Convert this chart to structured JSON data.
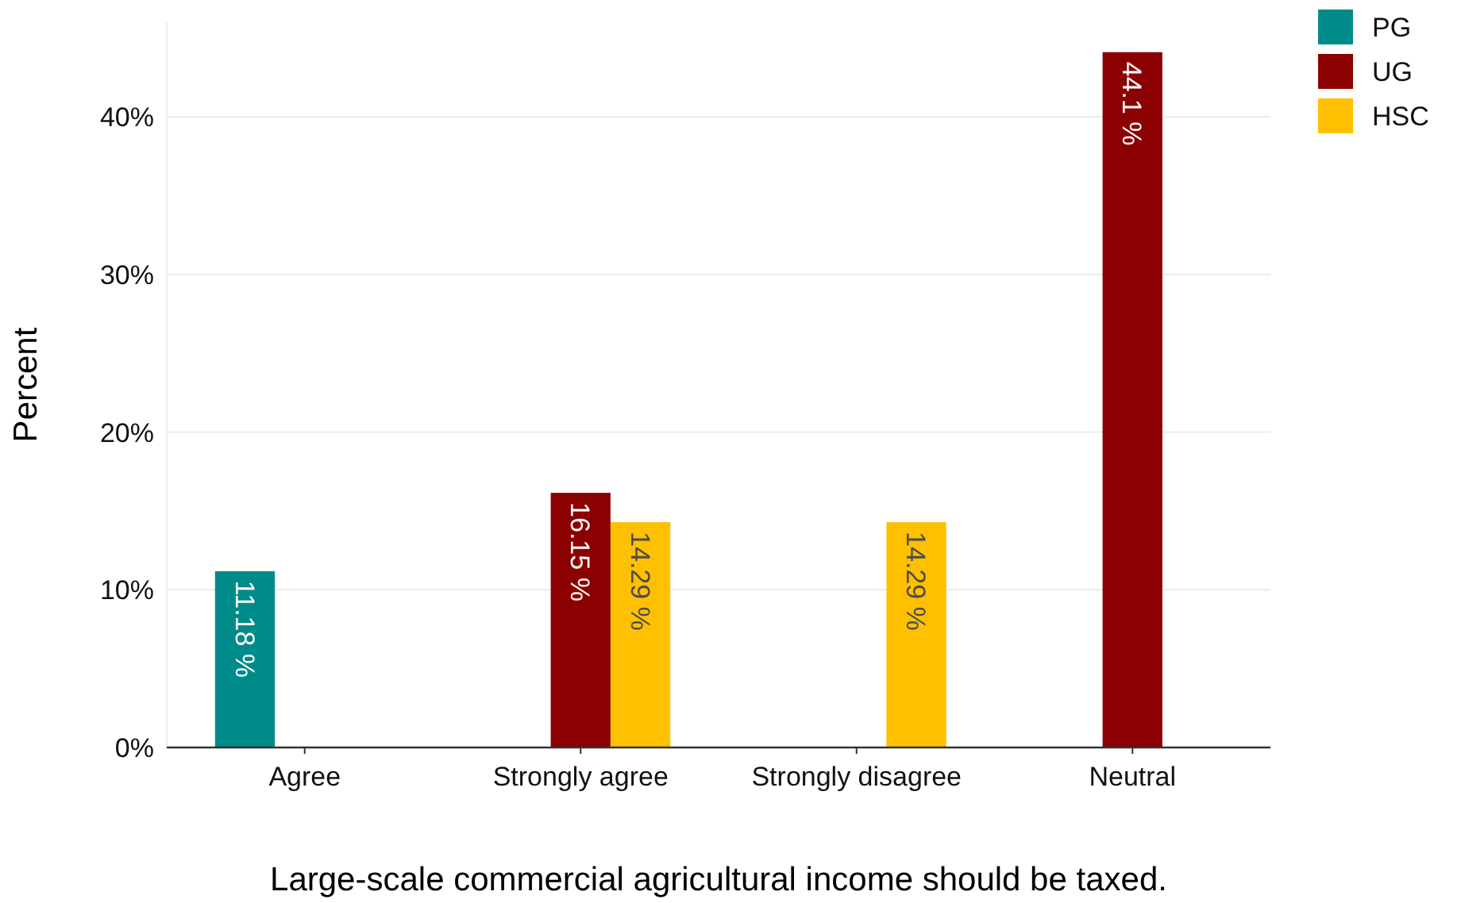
{
  "chart_data": {
    "type": "bar",
    "xlabel": "Large-scale commercial agricultural income should be taxed.",
    "ylabel": "Percent",
    "categories": [
      "Agree",
      "Strongly agree",
      "Strongly disagree",
      "Neutral"
    ],
    "series": [
      {
        "name": "PG",
        "color": "#008b8b",
        "values": [
          11.18,
          null,
          null,
          null
        ],
        "value_labels": [
          "11.18 %",
          null,
          null,
          null
        ]
      },
      {
        "name": "UG",
        "color": "#8b0000",
        "values": [
          null,
          16.15,
          null,
          44.1
        ],
        "value_labels": [
          null,
          "16.15 %",
          null,
          "44.1 %"
        ]
      },
      {
        "name": "HSC",
        "color": "#ffc000",
        "values": [
          null,
          14.29,
          14.29,
          null
        ],
        "value_labels": [
          null,
          "14.29 %",
          "14.29 %",
          null
        ]
      }
    ],
    "ylim": [
      0,
      46
    ],
    "yticks": [
      {
        "value": 0,
        "label": "0%"
      },
      {
        "value": 10,
        "label": "10%"
      },
      {
        "value": 20,
        "label": "20%"
      },
      {
        "value": 30,
        "label": "30%"
      },
      {
        "value": 40,
        "label": "40%"
      }
    ],
    "grid": "y",
    "legend": "top right"
  }
}
